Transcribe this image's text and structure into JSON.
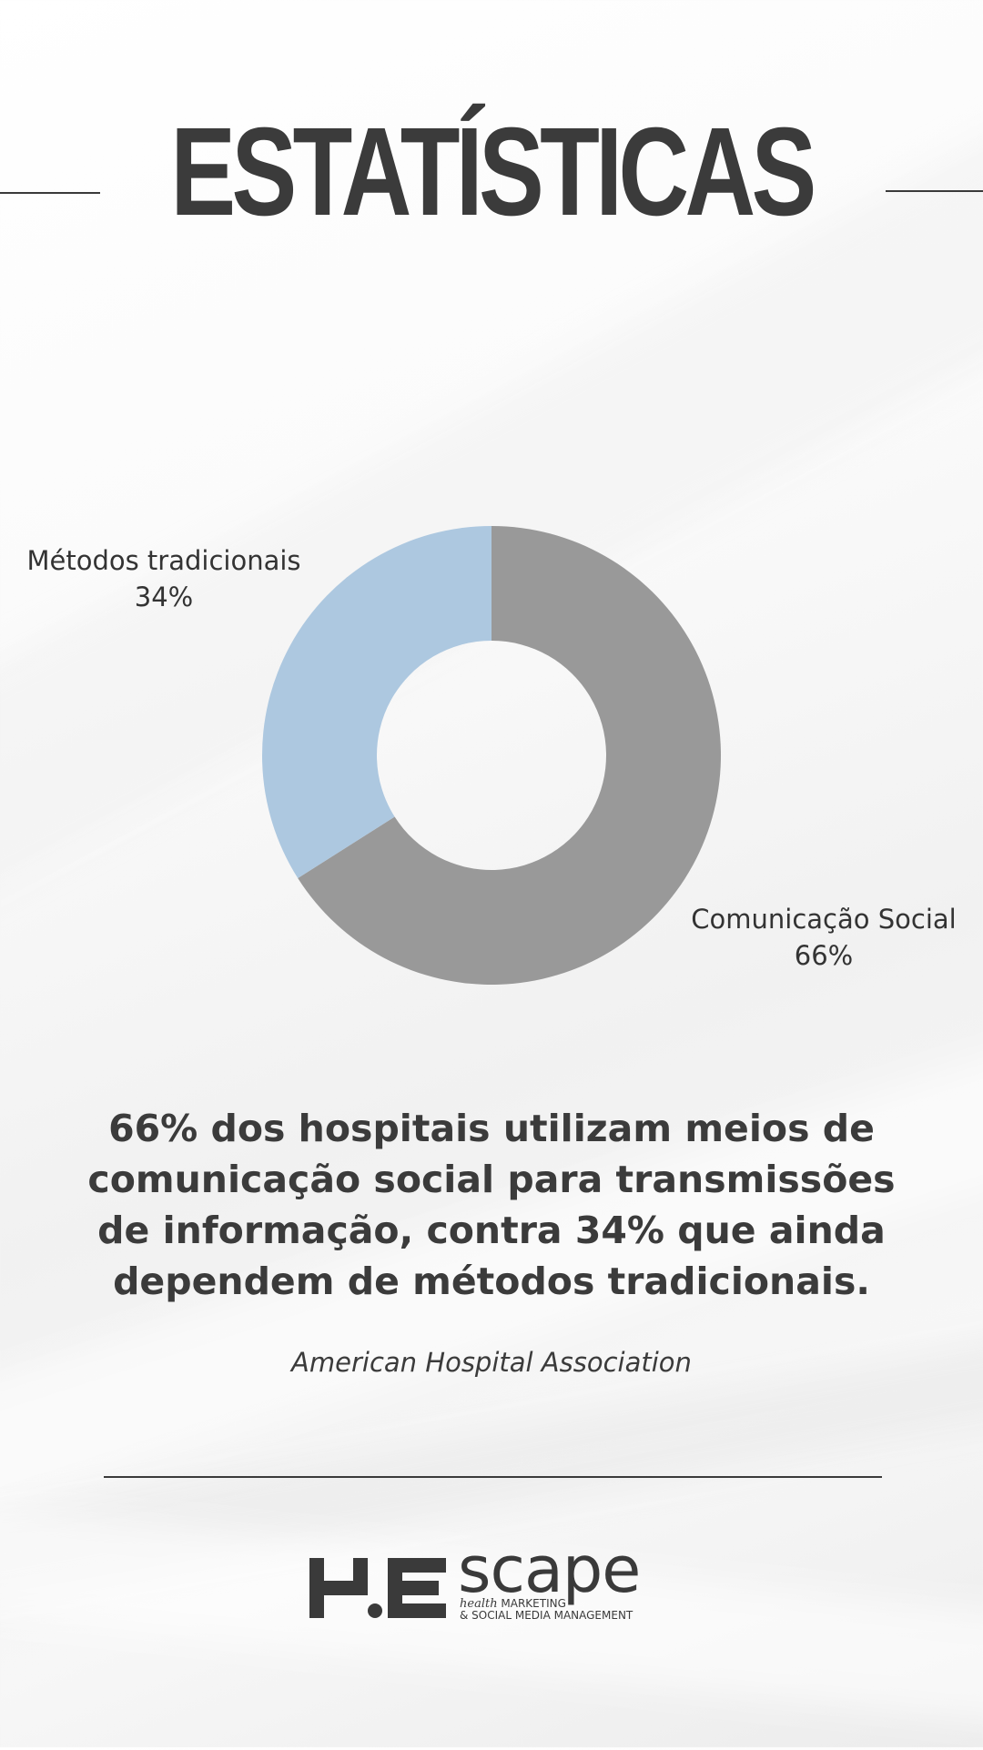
{
  "page": {
    "title": "ESTATÍSTICAS",
    "summary": "66% dos hospitais utilizam meios de comunicação social para transmissões de informação, contra 34% que ainda dependem de métodos tradicionais.",
    "source": "American Hospital Association"
  },
  "chart_data": {
    "type": "pie",
    "donut": true,
    "title": "",
    "slices": [
      {
        "label": "Comunicação Social",
        "value": 66,
        "display": "66%",
        "color": "#999999"
      },
      {
        "label": "Métodos tradicionais",
        "value": 34,
        "display": "34%",
        "color": "#adc8e0"
      }
    ]
  },
  "logo": {
    "word": "scape",
    "sub_line1_italic": "health",
    "sub_line1": "MARKETING",
    "sub_line2": "& SOCIAL MEDIA MANAGEMENT"
  },
  "colors": {
    "text": "#3b3b3b",
    "line": "#3a3a3a"
  }
}
